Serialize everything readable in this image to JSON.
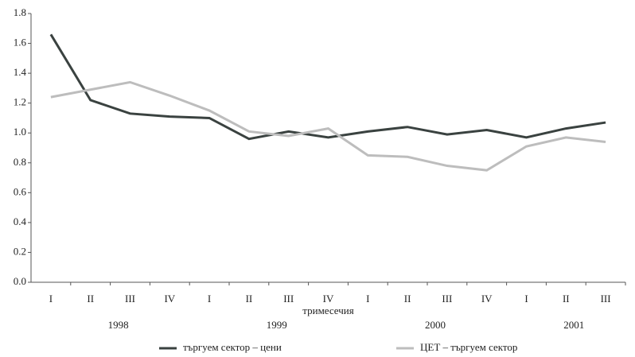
{
  "chart_data": {
    "type": "line",
    "x_label": "тримесечия",
    "categories": [
      "I",
      "II",
      "III",
      "IV",
      "I",
      "II",
      "III",
      "IV",
      "I",
      "II",
      "III",
      "IV",
      "I",
      "II",
      "III"
    ],
    "groups": [
      "1998",
      "1999",
      "2000",
      "2001"
    ],
    "series": [
      {
        "name": "търгуем сектор – цени",
        "color": "#3a4240",
        "values": [
          1.66,
          1.22,
          1.13,
          1.11,
          1.1,
          0.96,
          1.01,
          0.97,
          1.01,
          1.04,
          0.99,
          1.02,
          0.97,
          1.03,
          1.07
        ]
      },
      {
        "name": "ЦЕТ – търгуем сектор",
        "color": "#bdbdbd",
        "values": [
          1.24,
          1.29,
          1.34,
          1.25,
          1.15,
          1.01,
          0.98,
          1.03,
          0.85,
          0.84,
          0.78,
          0.75,
          0.91,
          0.97,
          0.94
        ]
      }
    ],
    "ylim": [
      0,
      1.8
    ],
    "yticks": [
      {
        "value": 0,
        "label": "0.0"
      },
      0.2,
      0.4,
      0.6,
      0.8,
      {
        "value": 1,
        "label": "1.0"
      },
      1.2,
      1.4,
      1.6,
      1.8
    ],
    "legend": "bottom"
  }
}
